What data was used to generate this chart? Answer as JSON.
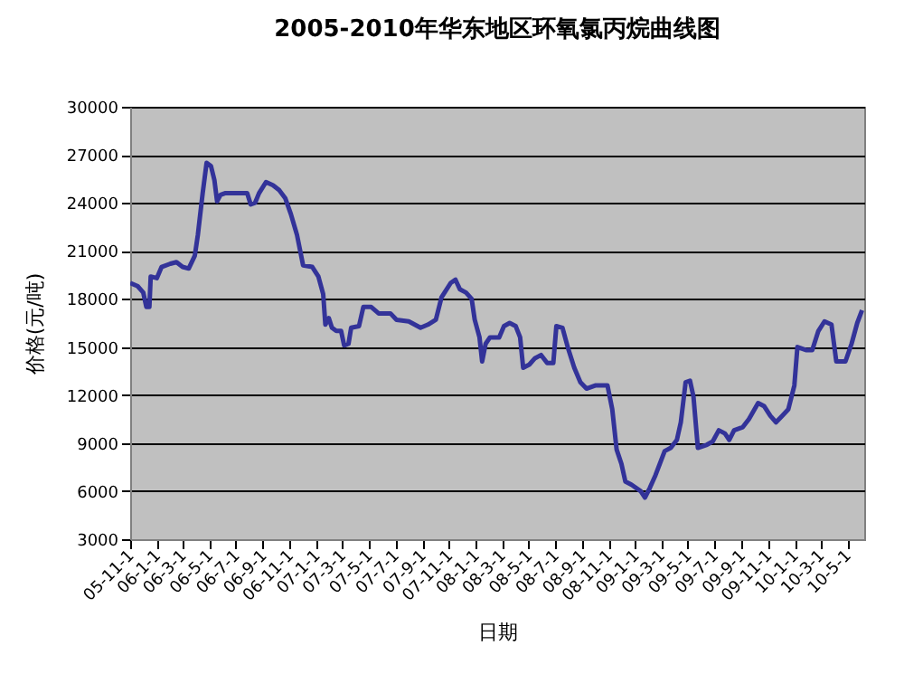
{
  "chart_data": {
    "type": "line",
    "title": "2005-2010年华东地区环氧氯丙烷曲线图",
    "xlabel": "日期",
    "ylabel": "价格(元/吨)",
    "x": [
      "2005-11-01",
      "2005-11-18",
      "2005-12-01",
      "2005-12-08",
      "2005-12-15",
      "2005-12-18",
      "2006-01-01",
      "2006-01-12",
      "2006-02-01",
      "2006-02-15",
      "2006-03-01",
      "2006-03-15",
      "2006-03-29",
      "2006-04-05",
      "2006-04-16",
      "2006-04-25",
      "2006-05-05",
      "2006-05-13",
      "2006-05-19",
      "2006-05-27",
      "2006-06-06",
      "2006-07-27",
      "2006-08-04",
      "2006-08-14",
      "2006-08-23",
      "2006-09-08",
      "2006-09-24",
      "2006-10-08",
      "2006-10-22",
      "2006-11-04",
      "2006-11-18",
      "2006-12-02",
      "2006-12-23",
      "2007-01-06",
      "2007-01-17",
      "2007-01-22",
      "2007-01-30",
      "2007-02-06",
      "2007-02-16",
      "2007-02-27",
      "2007-03-06",
      "2007-03-16",
      "2007-03-22",
      "2007-04-09",
      "2007-04-19",
      "2007-05-07",
      "2007-05-24",
      "2007-06-20",
      "2007-07-04",
      "2007-08-01",
      "2007-08-28",
      "2007-09-14",
      "2007-10-02",
      "2007-10-15",
      "2007-10-22",
      "2007-11-05",
      "2007-11-16",
      "2007-11-26",
      "2007-12-10",
      "2007-12-23",
      "2007-12-30",
      "2008-01-10",
      "2008-01-16",
      "2008-01-24",
      "2008-02-03",
      "2008-02-24",
      "2008-03-06",
      "2008-03-19",
      "2008-04-02",
      "2008-04-12",
      "2008-04-19",
      "2008-05-03",
      "2008-05-16",
      "2008-05-30",
      "2008-06-13",
      "2008-06-27",
      "2008-07-04",
      "2008-07-18",
      "2008-07-31",
      "2008-08-14",
      "2008-08-28",
      "2008-09-11",
      "2008-10-01",
      "2008-10-29",
      "2008-11-09",
      "2008-11-19",
      "2008-11-30",
      "2008-12-09",
      "2008-12-23",
      "2009-01-13",
      "2009-01-23",
      "2009-02-03",
      "2009-02-16",
      "2009-03-09",
      "2009-03-23",
      "2009-04-06",
      "2009-04-15",
      "2009-04-26",
      "2009-05-06",
      "2009-05-14",
      "2009-05-24",
      "2009-06-14",
      "2009-06-27",
      "2009-07-11",
      "2009-07-25",
      "2009-08-04",
      "2009-08-15",
      "2009-09-04",
      "2009-09-18",
      "2009-10-09",
      "2009-10-23",
      "2009-11-06",
      "2009-11-19",
      "2009-12-03",
      "2009-12-17",
      "2009-12-31",
      "2010-01-07",
      "2010-01-28",
      "2010-02-10",
      "2010-02-24",
      "2010-03-10",
      "2010-03-26",
      "2010-04-06",
      "2010-04-27",
      "2010-05-11",
      "2010-05-24",
      "2010-06-04"
    ],
    "series": [
      {
        "color": "#333399",
        "values": [
          19000,
          18800,
          18400,
          17500,
          17500,
          19400,
          19300,
          20000,
          20200,
          20300,
          20000,
          19900,
          20700,
          22000,
          24600,
          26500,
          26300,
          25400,
          24100,
          24500,
          24600,
          24600,
          23900,
          24000,
          24600,
          25300,
          25100,
          24800,
          24300,
          23300,
          22000,
          20100,
          20000,
          19400,
          18300,
          16400,
          16800,
          16200,
          16000,
          16000,
          15100,
          15200,
          16200,
          16300,
          17500,
          17500,
          17100,
          17100,
          16700,
          16600,
          16200,
          16400,
          16700,
          18100,
          18400,
          19000,
          19200,
          18600,
          18400,
          18000,
          16700,
          15600,
          14100,
          15200,
          15600,
          15600,
          16300,
          16500,
          16300,
          15600,
          13700,
          13900,
          14300,
          14500,
          14000,
          14000,
          16300,
          16200,
          14900,
          13700,
          12800,
          12400,
          12600,
          12600,
          11100,
          8600,
          7700,
          6600,
          6400,
          6000,
          5600,
          6200,
          7000,
          8500,
          8700,
          9200,
          10300,
          12800,
          12900,
          11900,
          8700,
          8900,
          9100,
          9800,
          9600,
          9200,
          9800,
          10000,
          10500,
          11500,
          11300,
          10700,
          10300,
          10700,
          11100,
          12600,
          15000,
          14800,
          14800,
          16000,
          16600,
          16400,
          14100,
          14100,
          15200,
          16500,
          17300
        ]
      }
    ],
    "xlim": [
      "2005-11-01",
      "2010-06-09"
    ],
    "xticks": [
      {
        "value": "2005-11-01",
        "label": "05-11-1"
      },
      {
        "value": "2006-01-01",
        "label": "06-1-1"
      },
      {
        "value": "2006-03-01",
        "label": "06-3-1"
      },
      {
        "value": "2006-05-01",
        "label": "06-5-1"
      },
      {
        "value": "2006-07-01",
        "label": "06-7-1"
      },
      {
        "value": "2006-09-01",
        "label": "06-9-1"
      },
      {
        "value": "2006-11-01",
        "label": "06-11-1"
      },
      {
        "value": "2007-01-01",
        "label": "07-1-1"
      },
      {
        "value": "2007-03-01",
        "label": "07-3-1"
      },
      {
        "value": "2007-05-01",
        "label": "07-5-1"
      },
      {
        "value": "2007-07-01",
        "label": "07-7-1"
      },
      {
        "value": "2007-09-01",
        "label": "07-9-1"
      },
      {
        "value": "2007-11-01",
        "label": "07-11-1"
      },
      {
        "value": "2008-01-01",
        "label": "08-1-1"
      },
      {
        "value": "2008-03-01",
        "label": "08-3-1"
      },
      {
        "value": "2008-05-01",
        "label": "08-5-1"
      },
      {
        "value": "2008-07-01",
        "label": "08-7-1"
      },
      {
        "value": "2008-09-01",
        "label": "08-9-1"
      },
      {
        "value": "2008-11-01",
        "label": "08-11-1"
      },
      {
        "value": "2009-01-01",
        "label": "09-1-1"
      },
      {
        "value": "2009-03-01",
        "label": "09-3-1"
      },
      {
        "value": "2009-05-01",
        "label": "09-5-1"
      },
      {
        "value": "2009-07-01",
        "label": "09-7-1"
      },
      {
        "value": "2009-09-01",
        "label": "09-9-1"
      },
      {
        "value": "2009-11-01",
        "label": "09-11-1"
      },
      {
        "value": "2010-01-01",
        "label": "10-1-1"
      },
      {
        "value": "2010-03-01",
        "label": "10-3-1"
      },
      {
        "value": "2010-05-01",
        "label": "10-5-1"
      }
    ],
    "ylim": [
      3000,
      30000
    ],
    "yticks": [
      3000,
      6000,
      9000,
      12000,
      15000,
      18000,
      21000,
      24000,
      27000,
      30000
    ],
    "grid": "y",
    "legend": false,
    "marker": "none",
    "line_style": "solid"
  }
}
